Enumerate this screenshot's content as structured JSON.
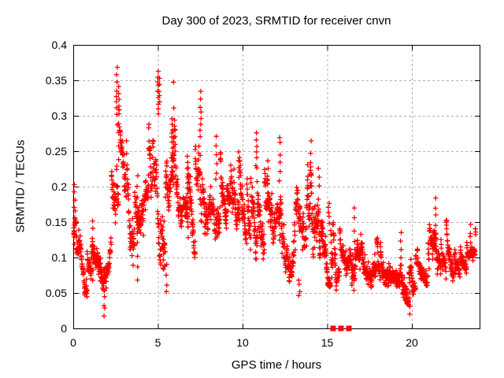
{
  "figure": {
    "title": "Day 300 of 2023, SRMTID for receiver cnvn",
    "xlabel": "GPS time / hours",
    "ylabel": "SRMTID / TECUs"
  },
  "colors": {
    "marker": "#ff0000",
    "grid": "#b0b0b0",
    "axis": "#000000",
    "text": "#000000",
    "background": "#ffffff"
  },
  "chart_data": {
    "type": "scatter",
    "title": "Day 300 of 2023, SRMTID for receiver cnvn",
    "xlabel": "GPS time / hours",
    "ylabel": "SRMTID / TECUs",
    "xlim": [
      0,
      24
    ],
    "ylim": [
      0,
      0.4
    ],
    "xticks": [
      0,
      5,
      10,
      15,
      20
    ],
    "xtick_labels": [
      "0",
      "5",
      "10",
      "15",
      "20"
    ],
    "yticks": [
      0,
      0.05,
      0.1,
      0.15,
      0.2,
      0.25,
      0.3,
      0.35,
      0.4
    ],
    "ytick_labels": [
      "0",
      "0.05",
      "0.1",
      "0.15",
      "0.2",
      "0.25",
      "0.3",
      "0.35",
      "0.4"
    ],
    "grid": "dashed-major-both-axes",
    "legend": "none",
    "marker": "plus",
    "marker_color": "#ff0000",
    "n_points": 1900,
    "seed": 20231027,
    "envelope": [
      [
        0.0,
        0.1,
        0.21
      ],
      [
        0.15,
        0.1,
        0.2
      ],
      [
        0.4,
        0.05,
        0.14
      ],
      [
        0.9,
        0.04,
        0.12
      ],
      [
        1.15,
        0.06,
        0.155
      ],
      [
        1.5,
        0.04,
        0.12
      ],
      [
        1.8,
        0.03,
        0.12
      ],
      [
        2.1,
        0.07,
        0.16
      ],
      [
        2.35,
        0.1,
        0.25
      ],
      [
        2.55,
        0.17,
        0.365
      ],
      [
        2.75,
        0.18,
        0.33
      ],
      [
        3.0,
        0.15,
        0.3
      ],
      [
        3.4,
        0.1,
        0.24
      ],
      [
        3.8,
        0.07,
        0.22
      ],
      [
        4.2,
        0.12,
        0.26
      ],
      [
        4.6,
        0.12,
        0.3
      ],
      [
        4.9,
        0.1,
        0.35
      ],
      [
        5.1,
        0.1,
        0.365
      ],
      [
        5.45,
        0.05,
        0.24
      ],
      [
        5.75,
        0.13,
        0.3
      ],
      [
        5.95,
        0.15,
        0.3
      ],
      [
        6.2,
        0.12,
        0.25
      ],
      [
        6.6,
        0.1,
        0.22
      ],
      [
        6.9,
        0.1,
        0.245
      ],
      [
        7.2,
        0.1,
        0.25
      ],
      [
        7.5,
        0.12,
        0.33
      ],
      [
        7.8,
        0.12,
        0.235
      ],
      [
        8.2,
        0.12,
        0.255
      ],
      [
        8.5,
        0.12,
        0.27
      ],
      [
        8.9,
        0.11,
        0.225
      ],
      [
        9.3,
        0.1,
        0.24
      ],
      [
        9.8,
        0.1,
        0.25
      ],
      [
        10.2,
        0.08,
        0.21
      ],
      [
        10.5,
        0.08,
        0.22
      ],
      [
        10.8,
        0.09,
        0.28
      ],
      [
        11.1,
        0.08,
        0.22
      ],
      [
        11.5,
        0.09,
        0.235
      ],
      [
        11.9,
        0.08,
        0.22
      ],
      [
        12.2,
        0.08,
        0.275
      ],
      [
        12.5,
        0.07,
        0.2
      ],
      [
        12.9,
        0.06,
        0.19
      ],
      [
        13.2,
        0.05,
        0.205
      ],
      [
        13.6,
        0.07,
        0.2
      ],
      [
        14.0,
        0.08,
        0.26
      ],
      [
        14.4,
        0.06,
        0.23
      ],
      [
        14.8,
        0.06,
        0.19
      ],
      [
        15.1,
        0.06,
        0.18
      ],
      [
        15.5,
        0.04,
        0.15
      ],
      [
        16.0,
        0.04,
        0.13
      ],
      [
        16.3,
        0.05,
        0.15
      ],
      [
        16.65,
        0.05,
        0.172
      ],
      [
        17.0,
        0.06,
        0.16
      ],
      [
        17.5,
        0.06,
        0.145
      ],
      [
        18.0,
        0.05,
        0.135
      ],
      [
        18.5,
        0.04,
        0.125
      ],
      [
        19.0,
        0.04,
        0.125
      ],
      [
        19.4,
        0.03,
        0.14
      ],
      [
        19.9,
        0.025,
        0.1
      ],
      [
        20.4,
        0.05,
        0.12
      ],
      [
        20.9,
        0.06,
        0.145
      ],
      [
        21.35,
        0.07,
        0.185
      ],
      [
        21.7,
        0.07,
        0.165
      ],
      [
        22.1,
        0.06,
        0.15
      ],
      [
        22.5,
        0.05,
        0.135
      ],
      [
        22.9,
        0.06,
        0.13
      ],
      [
        23.3,
        0.08,
        0.145
      ],
      [
        23.8,
        0.09,
        0.14
      ]
    ],
    "spikes": [
      [
        0.08,
        0.12,
        0.205,
        8
      ],
      [
        1.15,
        0.07,
        0.152,
        8
      ],
      [
        1.82,
        0.02,
        0.05,
        5
      ],
      [
        2.58,
        0.29,
        0.366,
        9
      ],
      [
        2.68,
        0.24,
        0.34,
        7
      ],
      [
        3.8,
        0.07,
        0.215,
        10
      ],
      [
        5.0,
        0.3,
        0.365,
        9
      ],
      [
        5.07,
        0.32,
        0.35,
        5
      ],
      [
        5.5,
        0.05,
        0.09,
        4
      ],
      [
        5.85,
        0.235,
        0.295,
        10
      ],
      [
        5.92,
        0.24,
        0.35,
        4
      ],
      [
        6.75,
        0.18,
        0.243,
        8
      ],
      [
        7.52,
        0.27,
        0.332,
        8
      ],
      [
        8.45,
        0.21,
        0.268,
        6
      ],
      [
        9.8,
        0.21,
        0.248,
        5
      ],
      [
        10.82,
        0.23,
        0.278,
        6
      ],
      [
        11.5,
        0.19,
        0.235,
        5
      ],
      [
        12.2,
        0.21,
        0.272,
        6
      ],
      [
        13.35,
        0.045,
        0.07,
        4
      ],
      [
        14.05,
        0.19,
        0.262,
        6
      ],
      [
        14.5,
        0.17,
        0.228,
        5
      ],
      [
        15.1,
        0.15,
        0.175,
        5
      ],
      [
        16.62,
        0.11,
        0.17,
        5
      ],
      [
        19.35,
        0.09,
        0.138,
        5
      ],
      [
        19.85,
        0.022,
        0.05,
        4
      ],
      [
        21.4,
        0.12,
        0.183,
        6
      ],
      [
        23.45,
        0.11,
        0.145,
        5
      ]
    ],
    "zero_square_markers_x": [
      15.35,
      15.81,
      16.28
    ]
  }
}
